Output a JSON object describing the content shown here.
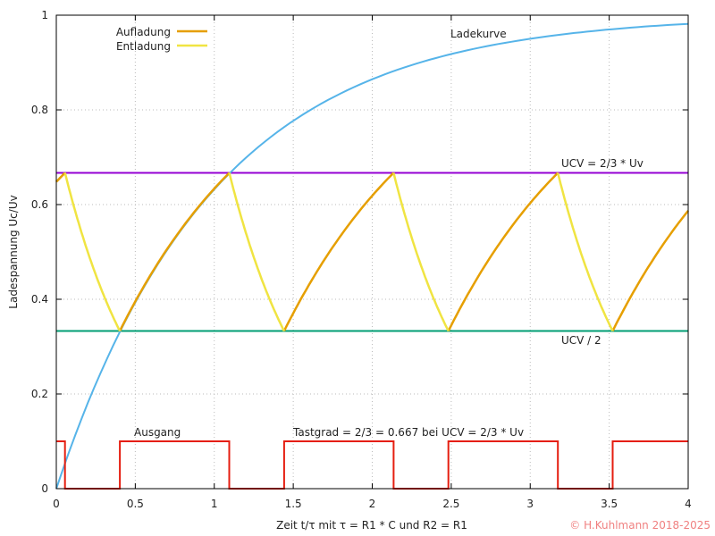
{
  "chart_data": {
    "type": "line",
    "title": "",
    "xlabel": "Zeit t/τ  mit τ = R1 * C und R2 = R1",
    "ylabel": "Ladespannung Uc/Uv",
    "xlim": [
      0,
      4
    ],
    "ylim": [
      0,
      1
    ],
    "xticks": [
      0,
      0.5,
      1,
      1.5,
      2,
      2.5,
      3,
      3.5,
      4
    ],
    "xtick_labels": [
      "0",
      "0.5",
      "1",
      "1.5",
      "2",
      "2.5",
      "3",
      "3.5",
      "4"
    ],
    "yticks": [
      0,
      0.2,
      0.4,
      0.6,
      0.8,
      1
    ],
    "ytick_labels": [
      "0",
      "0.2",
      "0.4",
      "0.6",
      "0.8",
      "1"
    ],
    "grid": true,
    "legend_position": "top-left",
    "series": [
      {
        "name": "Aufladung",
        "color": "#e69f00",
        "kind": "charge",
        "segments": [
          [
            0,
            0.055,
            0.648,
            0.667
          ],
          [
            0.402,
            1.095,
            0.333,
            0.667
          ],
          [
            1.442,
            2.135,
            0.333,
            0.667
          ],
          [
            2.482,
            3.175,
            0.333,
            0.667
          ],
          [
            3.522,
            4.0,
            0.333,
            0.587
          ]
        ]
      },
      {
        "name": "Entladung",
        "color": "#f0e442",
        "kind": "discharge",
        "segments": [
          [
            0.055,
            0.402,
            0.667,
            0.333
          ],
          [
            1.095,
            1.442,
            0.667,
            0.333
          ],
          [
            2.135,
            2.482,
            0.667,
            0.333
          ],
          [
            3.175,
            3.522,
            0.667,
            0.333
          ]
        ]
      },
      {
        "label": "Ladekurve",
        "color": "#56b4e9",
        "x": [
          0,
          0.25,
          0.5,
          0.75,
          1,
          1.25,
          1.5,
          1.75,
          2,
          2.25,
          2.5,
          2.75,
          3,
          3.25,
          3.5,
          3.75,
          4
        ],
        "y": [
          0,
          0.221,
          0.393,
          0.528,
          0.632,
          0.713,
          0.777,
          0.826,
          0.865,
          0.895,
          0.918,
          0.936,
          0.95,
          0.961,
          0.97,
          0.976,
          0.982
        ]
      },
      {
        "label": "UCV = 2/3 * Uv",
        "color": "#9400d3",
        "y_const": 0.667
      },
      {
        "label": "UCV / 2",
        "color": "#009e73",
        "y_const": 0.333
      },
      {
        "label": "Ausgang",
        "color": "#e51e10",
        "x": [
          0,
          0.055,
          0.055,
          0.402,
          0.402,
          1.095,
          1.095,
          1.442,
          1.442,
          2.135,
          2.135,
          2.482,
          2.482,
          3.175,
          3.175,
          3.522,
          3.522,
          4
        ],
        "y": [
          0.1,
          0.1,
          0,
          0,
          0.1,
          0.1,
          0,
          0,
          0.1,
          0.1,
          0,
          0,
          0.1,
          0.1,
          0,
          0,
          0.1,
          0.1
        ]
      }
    ],
    "annotations": {
      "ladekurve": "Ladekurve",
      "ucv_high": "UCV = 2/3 * Uv",
      "ucv_low": "UCV / 2",
      "ausgang": "Ausgang",
      "tastgrad": "Tastgrad = 2/3 = 0.667  bei UCV = 2/3 * Uv"
    },
    "copyright": "© H.Kuhlmann 2018-2025"
  }
}
